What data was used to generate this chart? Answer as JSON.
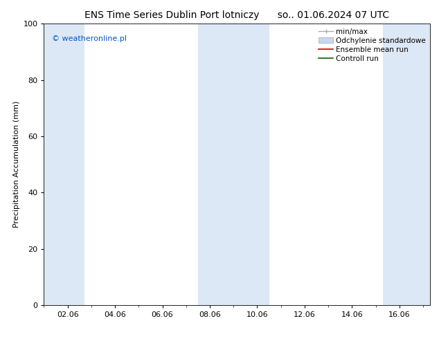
{
  "title_left": "ENS Time Series Dublin Port lotniczy",
  "title_right": "so.. 01.06.2024 07 UTC",
  "ylabel": "Precipitation Accumulation (mm)",
  "watermark": "© weatheronline.pl",
  "watermark_color": "#0055cc",
  "ylim": [
    0,
    100
  ],
  "yticks": [
    0,
    20,
    40,
    60,
    80,
    100
  ],
  "xtick_labels": [
    "02.06",
    "04.06",
    "06.06",
    "08.06",
    "10.06",
    "12.06",
    "14.06",
    "16.06"
  ],
  "xtick_positions": [
    2,
    4,
    6,
    8,
    10,
    12,
    14,
    16
  ],
  "xlim": [
    1.0,
    17.3
  ],
  "background_color": "#ffffff",
  "plot_bg_color": "#ffffff",
  "shaded_bands": [
    {
      "xmin": 1.0,
      "xmax": 2.7,
      "color": "#dce8f5"
    },
    {
      "xmin": 7.5,
      "xmax": 10.5,
      "color": "#dce8f5"
    },
    {
      "xmin": 15.3,
      "xmax": 17.3,
      "color": "#dce8f5"
    }
  ],
  "legend_entries": [
    {
      "label": "min/max",
      "color": "#aaaaaa",
      "type": "errorbar"
    },
    {
      "label": "Odchylenie standardowe",
      "color": "#c8d8f0",
      "type": "fill"
    },
    {
      "label": "Ensemble mean run",
      "color": "#cc0000",
      "type": "line"
    },
    {
      "label": "Controll run",
      "color": "#006600",
      "type": "line"
    }
  ],
  "title_fontsize": 10,
  "axis_label_fontsize": 8,
  "tick_fontsize": 8,
  "legend_fontsize": 7.5,
  "watermark_fontsize": 8
}
